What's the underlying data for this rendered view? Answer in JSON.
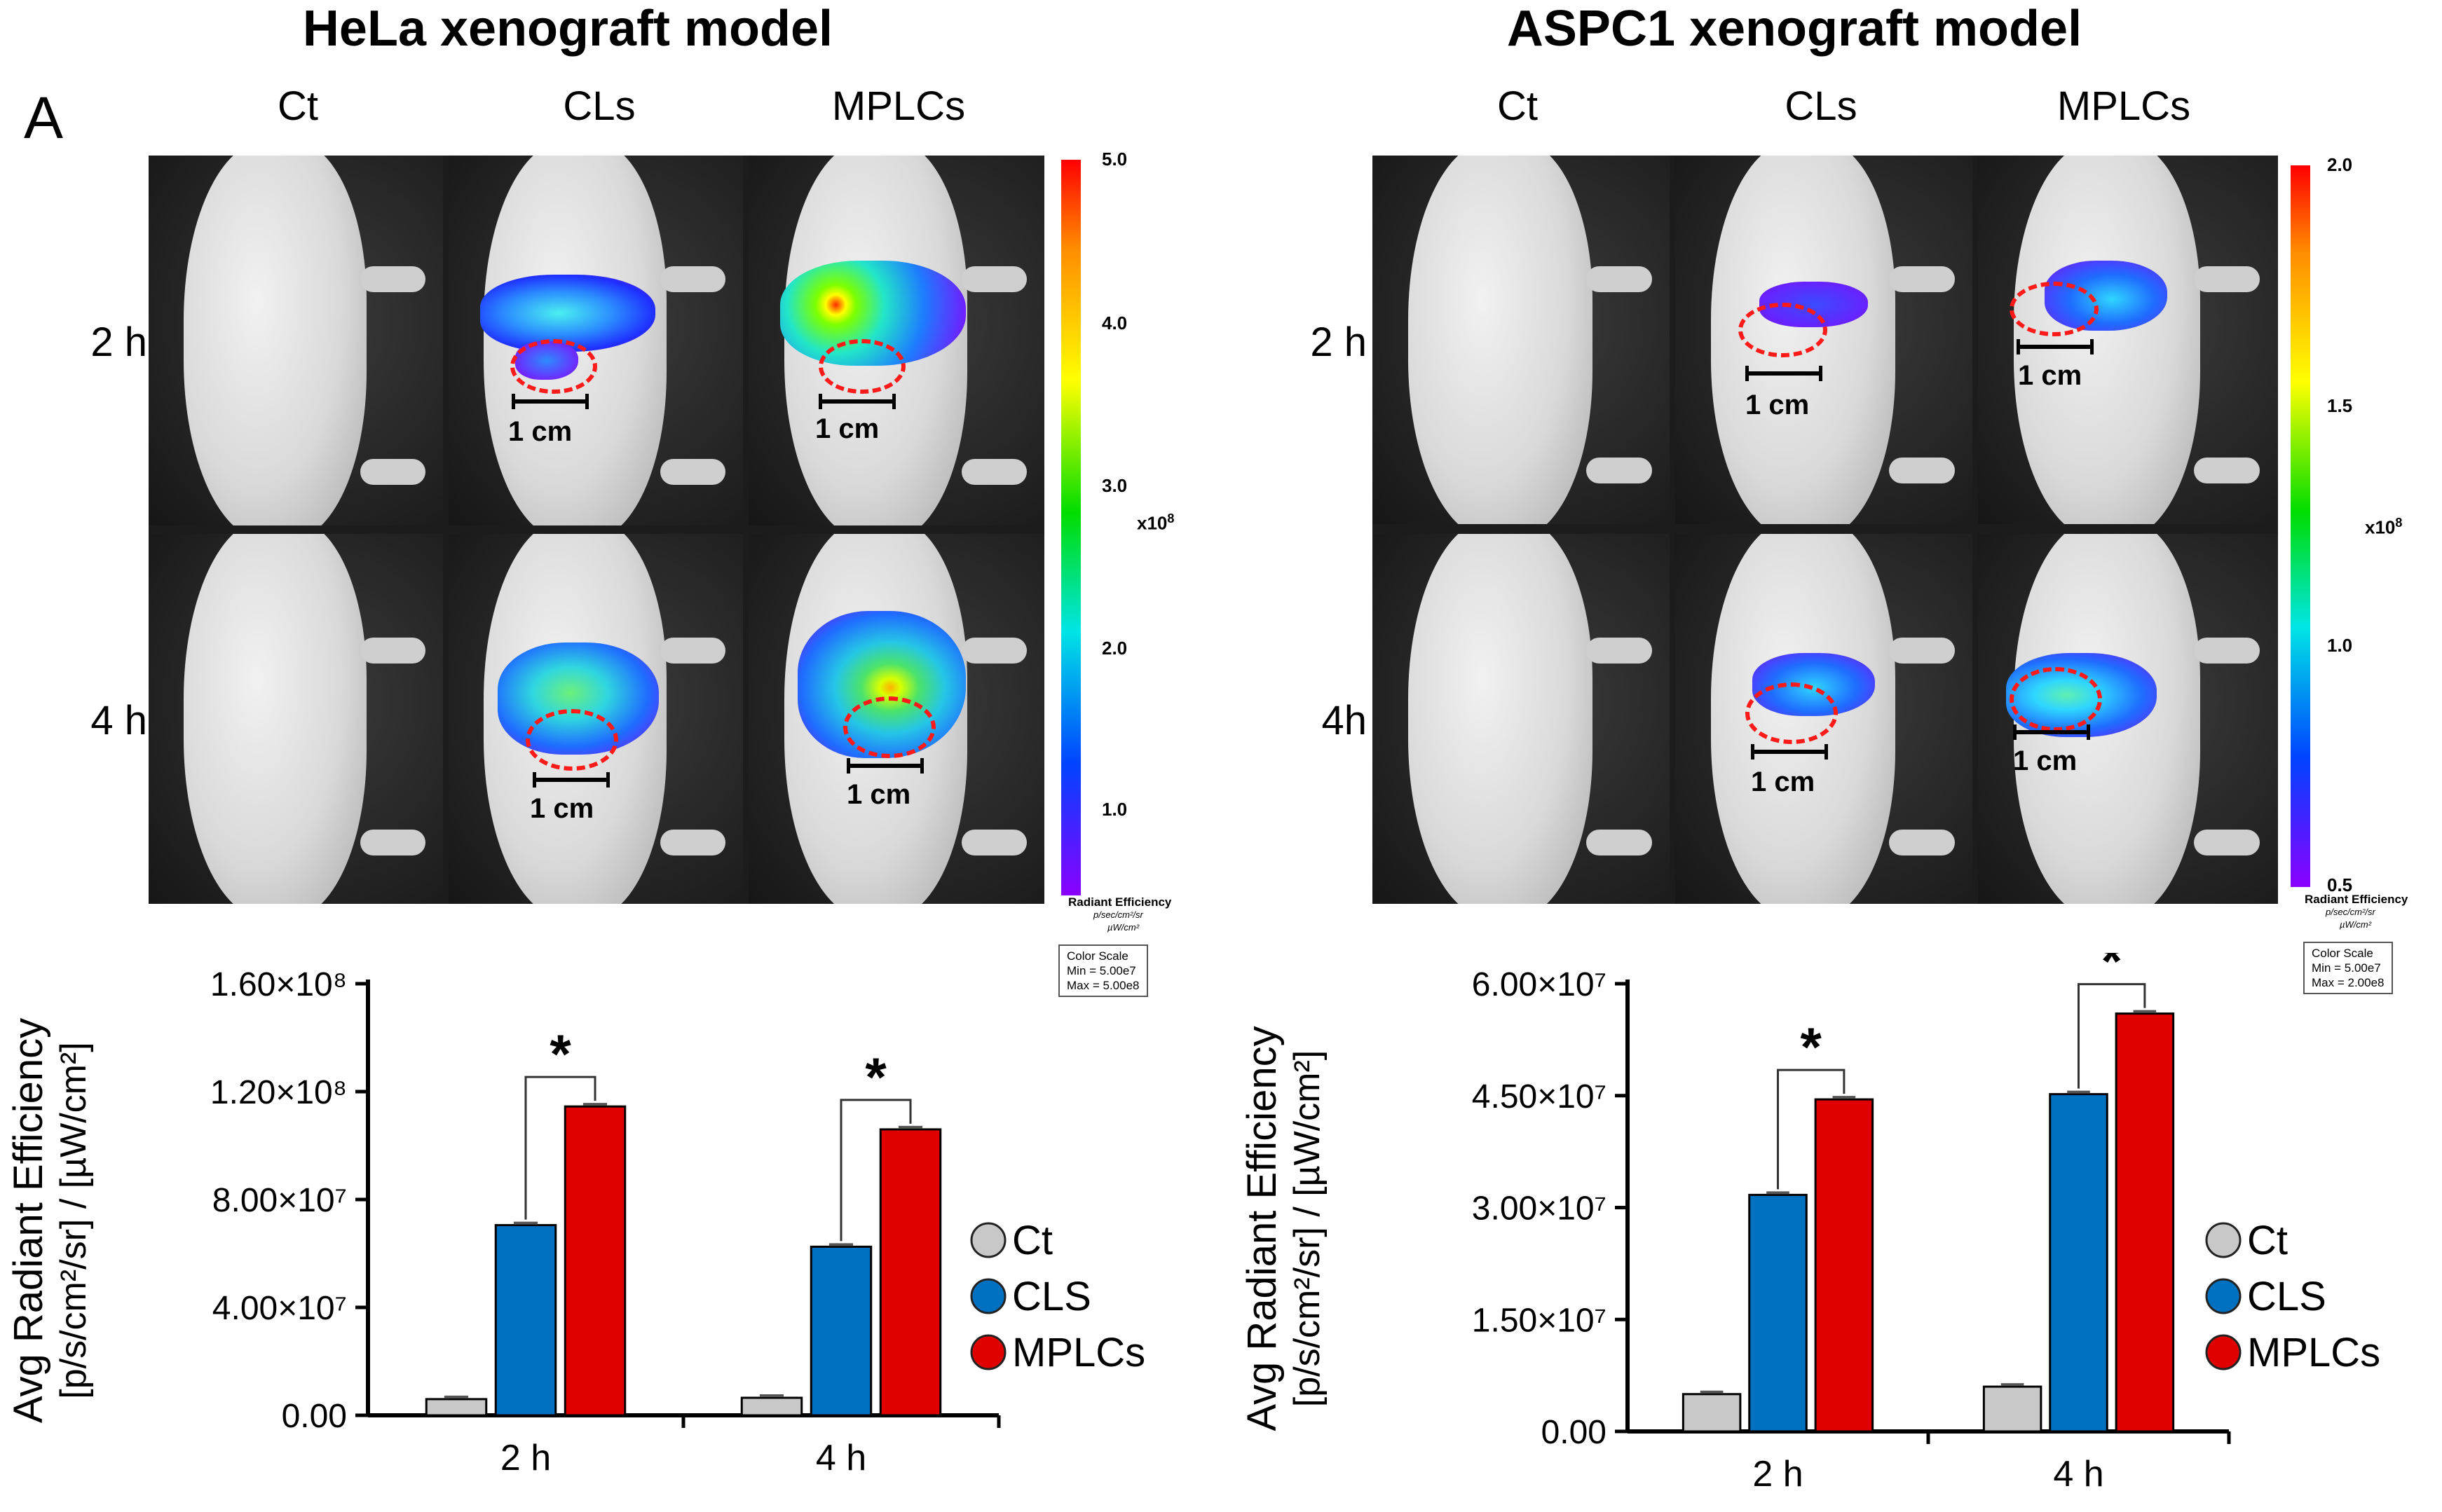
{
  "panel_label": "A",
  "left": {
    "title": "HeLa xenograft model",
    "columns": [
      "Ct",
      "CLs",
      "MPLCs"
    ],
    "rows": [
      "2 h",
      "4 h"
    ],
    "scale_label": "1 cm",
    "colorbar": {
      "ticks": [
        "5.0",
        "4.0",
        "3.0",
        "2.0",
        "1.0"
      ],
      "multiplier": "x10",
      "exponent": "8",
      "label": "Radiant Efficiency",
      "unit_num": "p/sec/cm²/sr",
      "unit_den": "µW/cm²",
      "scale_title": "Color Scale",
      "scale_min": "Min = 5.00e7",
      "scale_max": "Max = 5.00e8"
    }
  },
  "right": {
    "title": "ASPC1 xenograft model",
    "columns": [
      "Ct",
      "CLs",
      "MPLCs"
    ],
    "rows": [
      "2 h",
      "4h"
    ],
    "scale_label": "1 cm",
    "colorbar": {
      "ticks": [
        "2.0",
        "1.5",
        "1.0",
        "0.5"
      ],
      "multiplier": "x10",
      "exponent": "8",
      "label": "Radiant Efficiency",
      "unit_num": "p/sec/cm²/sr",
      "unit_den": "µW/cm²",
      "scale_title": "Color Scale",
      "scale_min": "Min = 5.00e7",
      "scale_max": "Max = 2.00e8"
    }
  },
  "colors": {
    "Ct": "#c8c8c8",
    "CLS": "#0070c0",
    "MPLCs": "#e00000",
    "ellipse": "#ff1a1a"
  },
  "chart_data": [
    {
      "type": "bar",
      "categories": [
        "2 h",
        "4 h"
      ],
      "series": [
        {
          "name": "Ct",
          "values": [
            6000000,
            6500000
          ]
        },
        {
          "name": "CLS",
          "values": [
            70500000,
            62500000
          ]
        },
        {
          "name": "MPLCs",
          "values": [
            114500000,
            106000000
          ]
        }
      ],
      "ylabel_line1": "Avg Radiant Efficiency",
      "ylabel_line2": "[p/s/cm²/sr] / [µW/cm²]",
      "ylim": [
        0,
        160000000
      ],
      "yticks": [
        0,
        40000000,
        80000000,
        120000000,
        160000000
      ],
      "ytick_labels": [
        "0.00",
        "4.00×10⁷",
        "8.00×10⁷",
        "1.20×10⁸",
        "1.60×10⁸"
      ],
      "significance": [
        {
          "category": "2 h",
          "label": "*"
        },
        {
          "category": "4 h",
          "label": "*"
        }
      ],
      "legend_position": "right"
    },
    {
      "type": "bar",
      "categories": [
        "2 h",
        "4 h"
      ],
      "series": [
        {
          "name": "Ct",
          "values": [
            5000000,
            6000000
          ]
        },
        {
          "name": "CLS",
          "values": [
            31700000,
            45200000
          ]
        },
        {
          "name": "MPLCs",
          "values": [
            44500000,
            56000000
          ]
        }
      ],
      "ylabel_line1": "Avg Radiant Efficiency",
      "ylabel_line2": "[p/s/cm²/sr] / [µW/cm²]",
      "ylim": [
        0,
        60000000
      ],
      "yticks": [
        0,
        15000000,
        30000000,
        45000000,
        60000000
      ],
      "ytick_labels": [
        "0.00",
        "1.50×10⁷",
        "3.00×10⁷",
        "4.50×10⁷",
        "6.00×10⁷"
      ],
      "significance": [
        {
          "category": "2 h",
          "label": "*"
        },
        {
          "category": "4 h",
          "label": "*"
        }
      ],
      "legend_position": "right"
    }
  ]
}
